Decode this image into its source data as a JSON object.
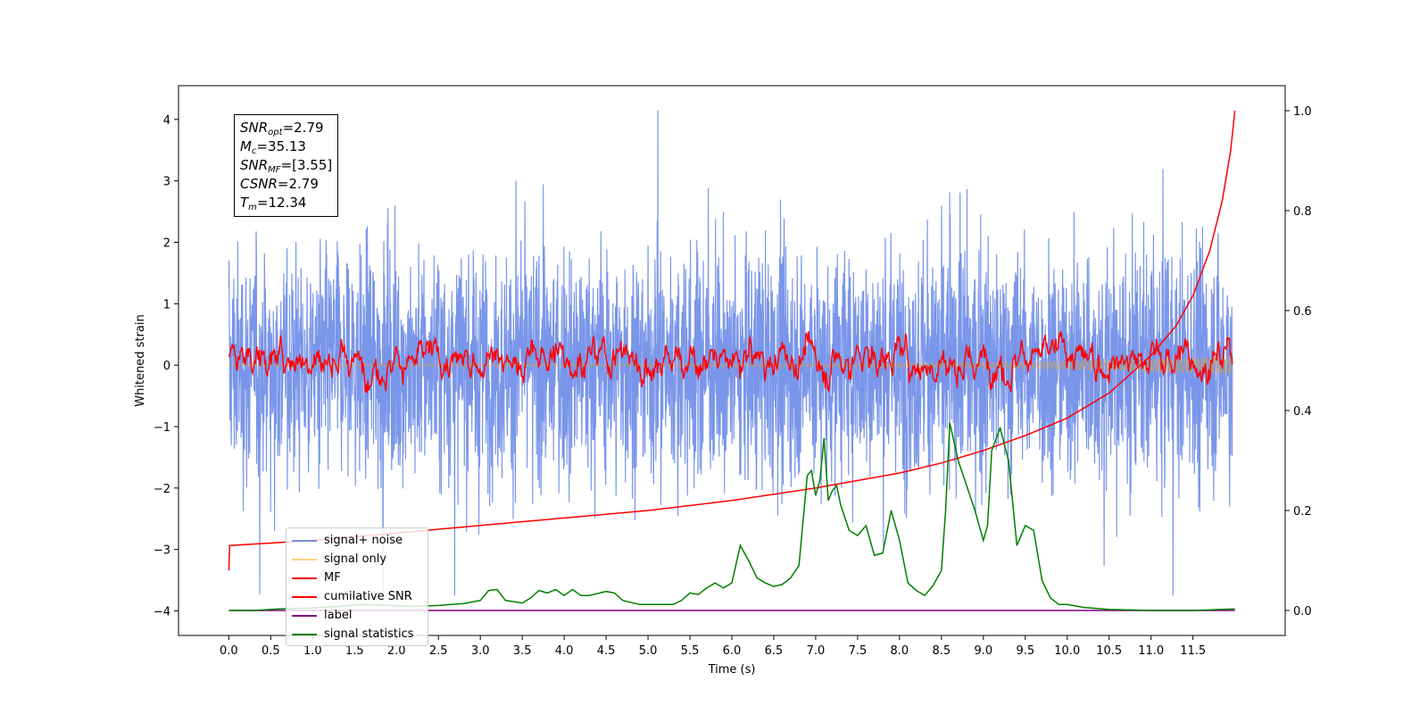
{
  "chart_data": {
    "type": "line",
    "title": "",
    "xlabel": "Time (s)",
    "ylabel": "Whitened strain",
    "y2label": "",
    "xlim": [
      -0.6,
      12.6
    ],
    "ylim": [
      -4.4,
      4.55
    ],
    "y2lim": [
      -0.05,
      1.05
    ],
    "xticks": [
      "0.0",
      "0.5",
      "1.0",
      "1.5",
      "2.0",
      "2.5",
      "3.0",
      "3.5",
      "4.0",
      "4.5",
      "5.0",
      "5.5",
      "6.0",
      "6.5",
      "7.0",
      "7.5",
      "8.0",
      "8.5",
      "9.0",
      "9.5",
      "10.0",
      "10.5",
      "11.0",
      "11.5"
    ],
    "yticks": [
      "4",
      "3",
      "2",
      "1",
      "0",
      "−1",
      "−2",
      "−3",
      "−4"
    ],
    "y2ticks": [
      "1.0",
      "0.8",
      "0.6",
      "0.4",
      "0.2",
      "0.0"
    ],
    "grid": false,
    "legend_position": "lower-left",
    "annotations": {
      "snr_opt": {
        "name": "SNR",
        "sub": "opt",
        "value": "=2.79"
      },
      "mc": {
        "name": "M",
        "sub": "c",
        "value": "=35.13"
      },
      "snr_mf": {
        "name": "SNR",
        "sub": "MF",
        "value": "=[3.55]"
      },
      "csnr": {
        "name": "CSNR",
        "value": "=2.79"
      },
      "tm": {
        "name": "T",
        "sub": "m",
        "value": "=12.34"
      }
    },
    "series": [
      {
        "name": "signal+ noise",
        "color": "#4169e1",
        "axis": "left",
        "description_amplitude": 1.2
      },
      {
        "name": "signal only",
        "color": "#ffa500",
        "axis": "left"
      },
      {
        "name": "MF",
        "color": "#ff0000",
        "axis": "left"
      },
      {
        "name": "cumilative SNR",
        "color": "#ff0000",
        "axis": "right",
        "x": [
          0.0,
          0.01,
          1.0,
          2.0,
          3.0,
          4.0,
          5.0,
          6.0,
          7.0,
          8.0,
          8.5,
          9.0,
          9.5,
          10.0,
          10.5,
          11.0,
          11.3,
          11.5,
          11.7,
          11.85,
          11.95,
          12.0
        ],
        "values": [
          0.08,
          0.13,
          0.14,
          0.155,
          0.17,
          0.185,
          0.2,
          0.22,
          0.245,
          0.275,
          0.295,
          0.32,
          0.35,
          0.385,
          0.435,
          0.51,
          0.57,
          0.63,
          0.72,
          0.82,
          0.92,
          1.0
        ]
      },
      {
        "name": "label",
        "color": "#800080",
        "axis": "right",
        "x": [
          0.0,
          12.0
        ],
        "values": [
          0.0,
          0.0
        ]
      },
      {
        "name": "signal statistics",
        "color": "#008000",
        "axis": "right",
        "x": [
          0.0,
          0.3,
          0.6,
          1.0,
          1.3,
          1.6,
          1.9,
          2.2,
          2.5,
          2.8,
          3.0,
          3.1,
          3.2,
          3.3,
          3.5,
          3.6,
          3.7,
          3.8,
          3.9,
          4.0,
          4.1,
          4.2,
          4.3,
          4.5,
          4.6,
          4.7,
          4.9,
          5.1,
          5.3,
          5.4,
          5.5,
          5.6,
          5.7,
          5.8,
          5.9,
          6.0,
          6.1,
          6.2,
          6.3,
          6.4,
          6.5,
          6.6,
          6.7,
          6.8,
          6.9,
          6.95,
          7.0,
          7.05,
          7.1,
          7.15,
          7.2,
          7.25,
          7.3,
          7.4,
          7.5,
          7.6,
          7.7,
          7.8,
          7.9,
          8.0,
          8.1,
          8.2,
          8.3,
          8.4,
          8.5,
          8.55,
          8.6,
          8.7,
          8.8,
          8.9,
          9.0,
          9.05,
          9.1,
          9.2,
          9.3,
          9.4,
          9.5,
          9.6,
          9.7,
          9.8,
          9.9,
          10.0,
          10.2,
          10.5,
          11.0,
          11.5,
          12.0
        ],
        "values": [
          0.0,
          0.0,
          0.003,
          0.005,
          0.008,
          0.012,
          0.01,
          0.008,
          0.01,
          0.014,
          0.02,
          0.04,
          0.042,
          0.02,
          0.015,
          0.025,
          0.04,
          0.035,
          0.042,
          0.03,
          0.042,
          0.03,
          0.03,
          0.038,
          0.035,
          0.02,
          0.012,
          0.012,
          0.012,
          0.02,
          0.035,
          0.032,
          0.045,
          0.055,
          0.045,
          0.055,
          0.13,
          0.1,
          0.065,
          0.055,
          0.048,
          0.052,
          0.065,
          0.09,
          0.27,
          0.28,
          0.23,
          0.26,
          0.345,
          0.22,
          0.24,
          0.25,
          0.21,
          0.16,
          0.15,
          0.17,
          0.11,
          0.115,
          0.2,
          0.14,
          0.055,
          0.04,
          0.03,
          0.05,
          0.08,
          0.2,
          0.375,
          0.3,
          0.25,
          0.2,
          0.14,
          0.17,
          0.32,
          0.365,
          0.3,
          0.13,
          0.17,
          0.16,
          0.06,
          0.025,
          0.012,
          0.012,
          0.006,
          0.002,
          0.0,
          0.0,
          0.003
        ]
      }
    ]
  }
}
